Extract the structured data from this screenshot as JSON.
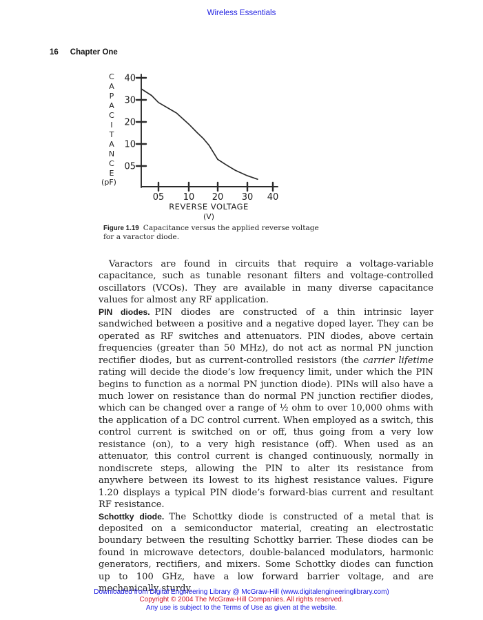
{
  "header": {
    "book_title": "Wireless Essentials",
    "page_number": "16",
    "chapter_title": "Chapter One",
    "book_title_color": "#1d1de0"
  },
  "figure": {
    "caption_label": "Figure 1.19",
    "caption_text": "Capacitance versus the applied reverse voltage for a varactor diode."
  },
  "chart_data": {
    "type": "line",
    "title": "",
    "ylabel_stacked": "CAPACITANCE",
    "ylabel_unit": "(pF)",
    "xlabel": "REVERSE VOLTAGE",
    "xlabel_unit": "(V)",
    "y_tick_values": [
      40,
      30,
      20,
      10,
      5
    ],
    "y_tick_labels": [
      "40",
      "30",
      "20",
      "10",
      "05"
    ],
    "x_tick_values": [
      5,
      10,
      20,
      30,
      40
    ],
    "x_tick_labels": [
      "05",
      "10",
      "20",
      "30",
      "40"
    ],
    "xlim": [
      0,
      40
    ],
    "ylim": [
      0,
      40
    ],
    "grid": false,
    "curve": {
      "x": [
        0,
        3,
        5,
        8,
        10,
        13,
        15,
        17,
        20,
        23,
        26,
        30,
        34
      ],
      "y": [
        35,
        32,
        28.8,
        24,
        19,
        15,
        12.5,
        9.7,
        6.5,
        5.2,
        4,
        2.8,
        2
      ]
    },
    "line_color": "#2b2b2b"
  },
  "paragraphs": {
    "varactor": "Varactors are found in circuits that require a voltage-variable capacitance, such as tunable resonant filters and voltage-controlled oscillators (VCOs). They are available in many diverse capacitance values for almost any RF application.",
    "pin": {
      "head": "PIN diodes.",
      "before_italic": "PIN diodes are constructed of a thin intrinsic layer sandwiched between a positive and a negative doped layer. They can be operated as RF switches and attenuators. PIN diodes, above certain frequencies (greater than 50 MHz), do not act as normal PN junction rectifier diodes, but as current-controlled resistors (the ",
      "italic": "carrier lifetime",
      "after_italic": " rating will decide the diode’s low frequency limit, under which the PIN begins to function as a normal PN junction diode). PINs will also have a much lower on resistance than do normal PN junction rectifier diodes, which can be changed over a range of ½ ohm to over 10,000 ohms with the application of a DC control current. When employed as a switch, this control current is switched on or off, thus going from a very low resistance (on), to a very high resistance (off). When used as an attenuator, this control current is changed continuously, normally in nondiscrete steps, allowing the PIN to alter its resistance from anywhere between its lowest to its highest resistance values. Figure 1.20 displays a typical PIN diode’s forward-bias current and resultant RF resistance."
    },
    "schottky": {
      "head": "Schottky diode.",
      "body": "The Schottky diode is constructed of a metal that is deposited on a semiconductor material, creating an electrostatic boundary between the resulting Schottky barrier. These diodes can be found in microwave detectors, double-balanced modulators, harmonic generators, rectifiers, and mixers. Some Schottky diodes can function up to 100 GHz, have a low forward barrier voltage, and are mechanically sturdy."
    }
  },
  "footer": {
    "line1": "Downloaded from Digital Engineering Library @ McGraw-Hill (www.digitalengineeringlibrary.com)",
    "line2": "Copyright © 2004 The McGraw-Hill Companies. All rights reserved.",
    "line3": "Any use is subject to the Terms of Use as given at the website.",
    "blue_color": "#1616e0",
    "red_color": "#cc1126"
  }
}
